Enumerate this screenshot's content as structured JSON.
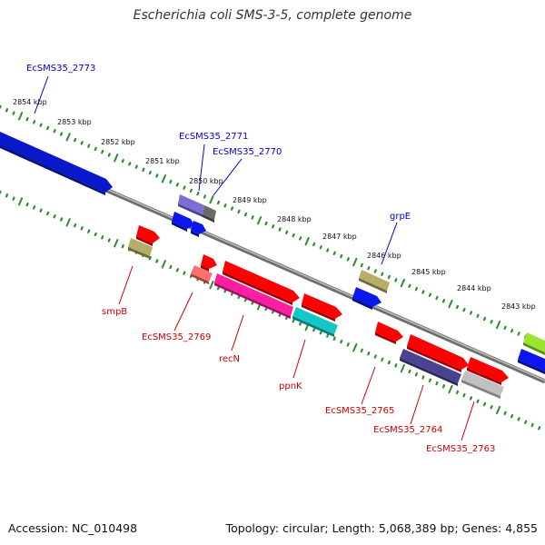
{
  "title": "Escherichia coli SMS-3-5, complete genome",
  "footer": {
    "accession": "Accession: NC_010498",
    "topology": "Topology: circular; Length: 5,068,389 bp; Genes: 4,855"
  },
  "colors": {
    "backbone": "#808080",
    "ticks": "#2e8b2e",
    "top_label": "#0000cc",
    "bottom_label": "#cc0000"
  },
  "axis": {
    "ticks": [
      {
        "kbp": 2854,
        "label": "2854 kbp"
      },
      {
        "kbp": 2853,
        "label": "2853 kbp"
      },
      {
        "kbp": 2852,
        "label": "2852 kbp"
      },
      {
        "kbp": 2851,
        "label": "2851 kbp"
      },
      {
        "kbp": 2850,
        "label": "2850 kbp"
      },
      {
        "kbp": 2849,
        "label": "2849 kbp"
      },
      {
        "kbp": 2848,
        "label": "2848 kbp"
      },
      {
        "kbp": 2847,
        "label": "2847 kbp"
      },
      {
        "kbp": 2846,
        "label": "2846 kbp"
      },
      {
        "kbp": 2845,
        "label": "2845 kbp"
      },
      {
        "kbp": 2844,
        "label": "2844 kbp"
      },
      {
        "kbp": 2843,
        "label": "2843 kbp"
      }
    ]
  },
  "gene_labels": {
    "top": [
      "EcSMS35_2773",
      "EcSMS35_2771",
      "EcSMS35_2770",
      "grpE"
    ],
    "bottom": [
      "smpB",
      "EcSMS35_2769",
      "recN",
      "ppnK",
      "EcSMS35_2765",
      "EcSMS35_2764",
      "EcSMS35_2763"
    ]
  }
}
